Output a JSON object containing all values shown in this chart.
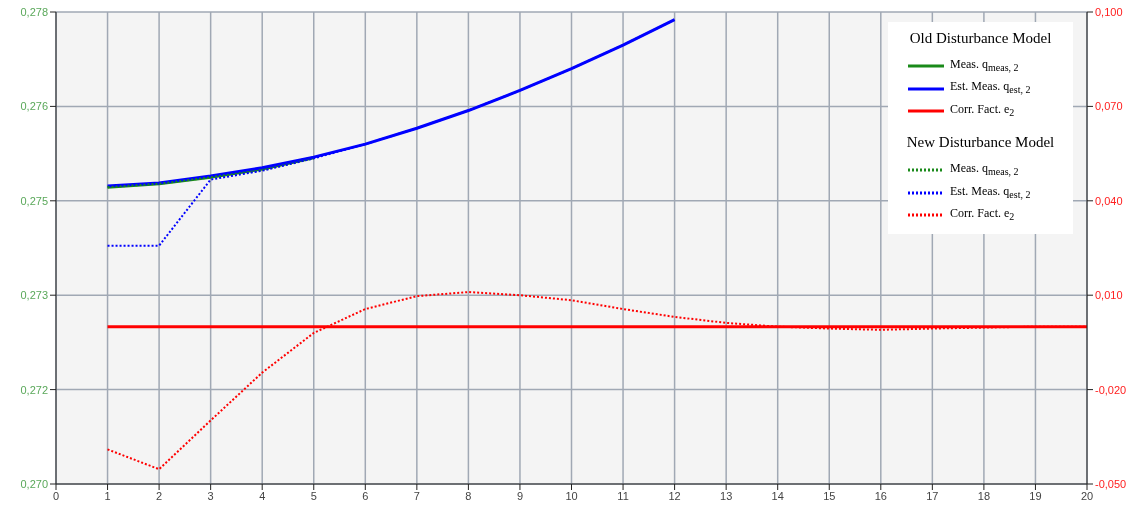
{
  "chart_data": {
    "type": "line",
    "x": [
      1,
      2,
      3,
      4,
      5,
      6,
      7,
      8,
      9,
      10,
      11,
      12,
      13,
      14,
      15,
      16,
      17,
      18,
      19,
      20
    ],
    "legend_title": "Old Disturbance Model",
    "annotations": [
      "New Disturbance Model"
    ],
    "xlim": [
      0,
      20
    ],
    "xticks": [
      0,
      1,
      2,
      3,
      4,
      5,
      6,
      7,
      8,
      9,
      10,
      11,
      12,
      13,
      14,
      15,
      16,
      17,
      18,
      19,
      20
    ],
    "ylim": [
      0.27,
      0.278
    ],
    "yticks": [
      {
        "value": 0.27,
        "label": "0,270"
      },
      {
        "value": 0.2716,
        "label": "0,272"
      },
      {
        "value": 0.2732,
        "label": "0,273"
      },
      {
        "value": 0.2748,
        "label": "0,275"
      },
      {
        "value": 0.2764,
        "label": "0,276"
      },
      {
        "value": 0.278,
        "label": "0,278"
      }
    ],
    "y2lim": [
      -0.05,
      0.1
    ],
    "y2ticks": [
      {
        "value": -0.05,
        "label": "-0,050"
      },
      {
        "value": -0.02,
        "label": "-0,020"
      },
      {
        "value": 0.01,
        "label": "0,010"
      },
      {
        "value": 0.04,
        "label": "0,040"
      },
      {
        "value": 0.07,
        "label": "0,070"
      },
      {
        "value": 0.1,
        "label": "0,100"
      }
    ],
    "grid": true,
    "legend": "top right",
    "marker": "none",
    "series": [
      {
        "name": "Meas. q$_{meas, 2}$",
        "color": "#1a8a1a",
        "line_style": "solid",
        "values": [
          0.27503,
          0.27509,
          0.2752,
          0.27534,
          0.27553,
          null,
          null,
          null,
          null,
          null,
          null,
          null,
          null,
          null,
          null,
          null,
          null,
          null,
          null,
          null
        ]
      },
      {
        "name": "Est. Meas. q$_{est, 2}$",
        "color": "#0000ff",
        "line_style": "solid",
        "values": [
          0.27505,
          0.2751,
          0.27522,
          0.27536,
          0.27554,
          0.27576,
          0.27603,
          0.27633,
          0.27667,
          0.27704,
          0.27744,
          0.27787,
          null,
          null,
          null,
          null,
          null,
          null,
          null,
          null
        ]
      },
      {
        "name": "Corr. Fact. e$_{2}$",
        "color": "#ff0000",
        "line_style": "solid",
        "axis": "y2",
        "values": [
          0,
          0,
          0,
          0,
          0,
          0,
          0,
          0,
          0,
          0,
          0,
          0,
          0,
          0,
          0,
          0,
          0,
          0,
          0,
          0
        ]
      },
      {
        "name": "Meas. q$_{meas, 2}$",
        "color": "#1a8a1a",
        "line_style": "dotted",
        "values": [
          0.27503,
          0.27509,
          0.2752,
          0.27532,
          0.27552,
          null,
          null,
          null,
          null,
          null,
          null,
          null,
          null,
          null,
          null,
          null,
          null,
          null,
          null,
          null
        ]
      },
      {
        "name": "Est. Meas. q$_{est, 2}$",
        "color": "#0000ff",
        "line_style": "dotted",
        "values": [
          0.27404,
          0.27404,
          0.27516,
          0.27531,
          0.27552,
          0.27576,
          0.27603,
          0.27633,
          0.27667,
          0.27704,
          0.27744,
          0.27787,
          null,
          null,
          null,
          null,
          null,
          null,
          null,
          null
        ]
      },
      {
        "name": "Corr. Fact. e$_{2}$",
        "color": "#ff0000",
        "line_style": "dotted",
        "axis": "y2",
        "values": [
          -0.039,
          -0.0453,
          -0.0298,
          -0.0146,
          -0.002,
          0.0056,
          0.0097,
          0.011,
          0.01,
          0.0084,
          0.0056,
          0.0031,
          0.0012,
          0,
          -0.0006,
          -0.001,
          -0.0006,
          -0.0003,
          0,
          0
        ]
      }
    ]
  }
}
